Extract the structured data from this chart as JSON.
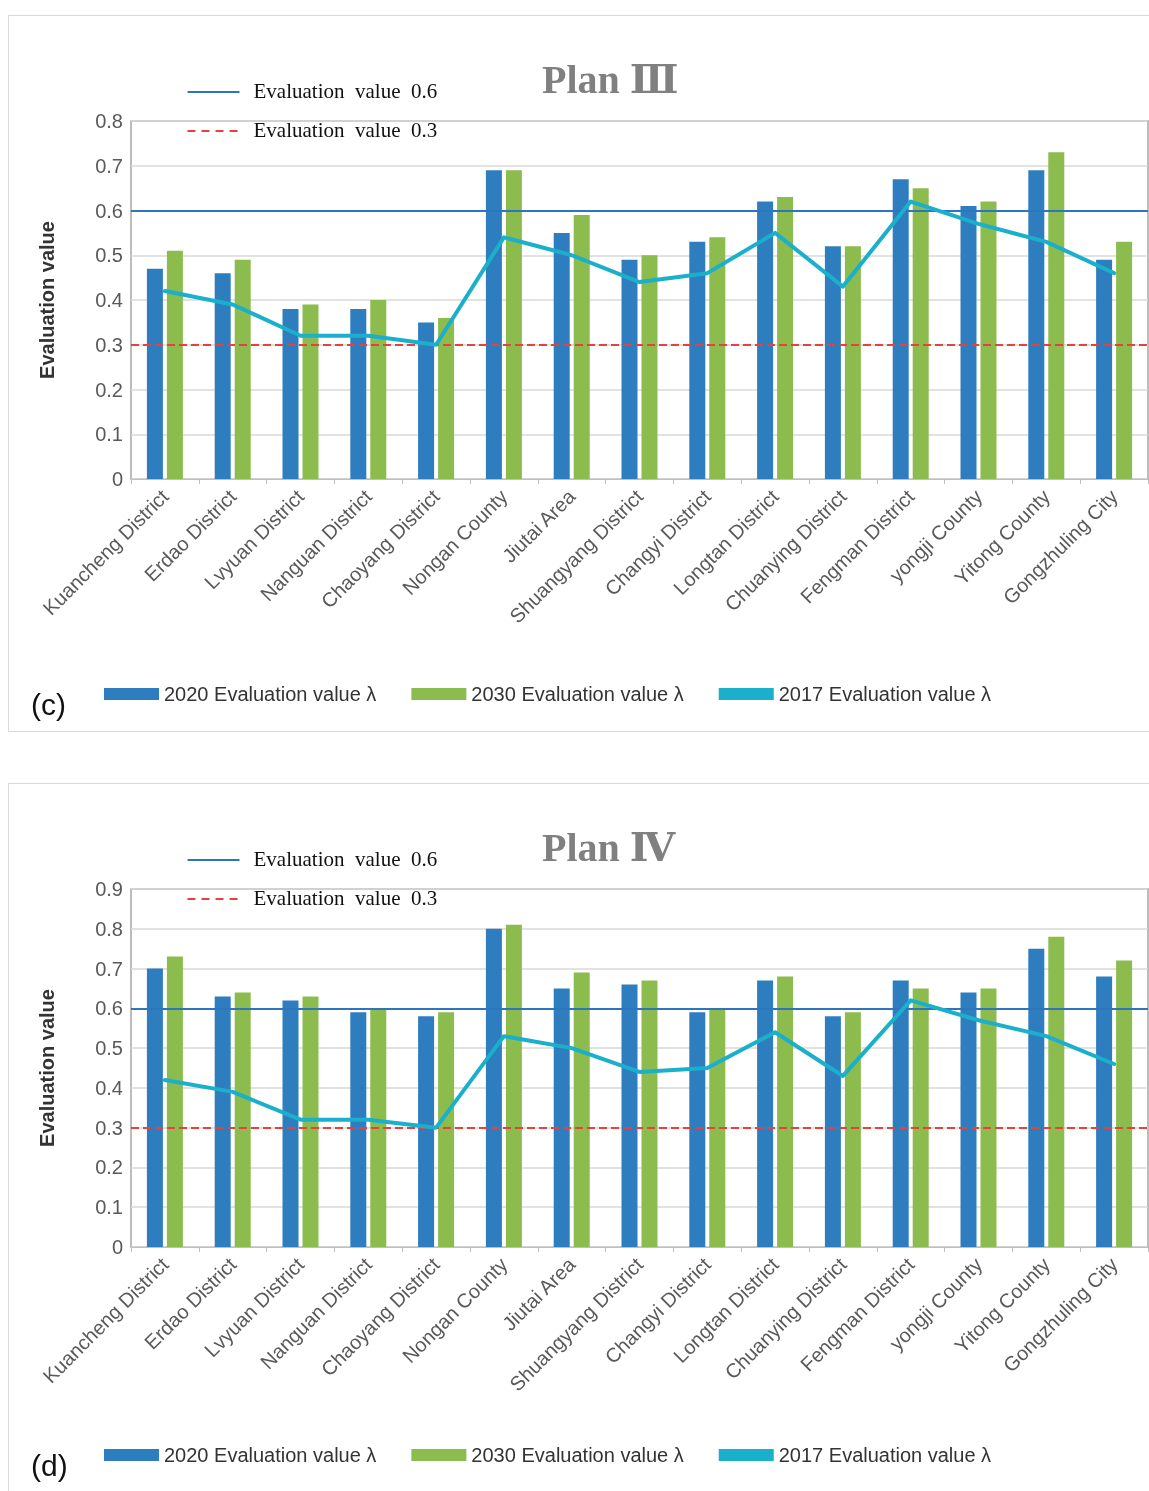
{
  "chart_data": [
    {
      "type": "bar",
      "title": "Plan Ⅲ",
      "ylabel": "Evaluation value",
      "annotations": [
        "(c)"
      ],
      "categories": [
        "Kuancheng District",
        "Erdao District",
        "Lvyuan District",
        "Nanguan District",
        "Chaoyang District",
        "Nongan County",
        "Jiutai Area",
        "Shuangyang District",
        "Changyi District",
        "Longtan District",
        "Chuanying District",
        "Fengman District",
        "yongji County",
        "Yitong County",
        "Gongzhuling City"
      ],
      "series": [
        {
          "name": "2020 Evaluation value λ",
          "color": "#2e7ebf",
          "values": [
            0.47,
            0.46,
            0.38,
            0.38,
            0.35,
            0.69,
            0.55,
            0.49,
            0.53,
            0.62,
            0.52,
            0.67,
            0.61,
            0.69,
            0.49
          ]
        },
        {
          "name": "2030 Evaluation value λ",
          "color": "#8cbb4e",
          "values": [
            0.51,
            0.49,
            0.39,
            0.4,
            0.36,
            0.69,
            0.59,
            0.5,
            0.54,
            0.63,
            0.52,
            0.65,
            0.62,
            0.73,
            0.53
          ]
        },
        {
          "name": "2017 Evaluation value λ",
          "type": "line",
          "color": "#1ab0cb",
          "values": [
            0.42,
            0.39,
            0.32,
            0.32,
            0.3,
            0.54,
            0.5,
            0.44,
            0.46,
            0.55,
            0.43,
            0.62,
            0.57,
            0.53,
            0.46
          ]
        }
      ],
      "ylim": [
        0,
        0.8
      ],
      "yticks": [
        0,
        0.1,
        0.2,
        0.3,
        0.4,
        0.5,
        0.6,
        0.7,
        0.8
      ],
      "grid": "y",
      "legend": "bottom",
      "marker": "none",
      "ref_lines": [
        {
          "axis": "y",
          "value": 0.6,
          "label": "Evaluation  value  0.6",
          "color": "#2e75c0",
          "line_style": "solid"
        },
        {
          "axis": "y",
          "value": 0.3,
          "label": "Evaluation  value  0.3",
          "color": "#e8403a",
          "line_style": "dashed"
        }
      ]
    },
    {
      "type": "bar",
      "title": "Plan Ⅳ",
      "ylabel": "Evaluation value",
      "annotations": [
        "(d)"
      ],
      "categories": [
        "Kuancheng District",
        "Erdao District",
        "Lvyuan District",
        "Nanguan District",
        "Chaoyang District",
        "Nongan County",
        "Jiutai Area",
        "Shuangyang District",
        "Changyi District",
        "Longtan District",
        "Chuanying District",
        "Fengman District",
        "yongji County",
        "Yitong County",
        "Gongzhuling City"
      ],
      "series": [
        {
          "name": "2020 Evaluation value λ",
          "color": "#2e7ebf",
          "values": [
            0.7,
            0.63,
            0.62,
            0.59,
            0.58,
            0.8,
            0.65,
            0.66,
            0.59,
            0.67,
            0.58,
            0.67,
            0.64,
            0.75,
            0.68
          ]
        },
        {
          "name": "2030 Evaluation value λ",
          "color": "#8cbb4e",
          "values": [
            0.73,
            0.64,
            0.63,
            0.6,
            0.59,
            0.81,
            0.69,
            0.67,
            0.6,
            0.68,
            0.59,
            0.65,
            0.65,
            0.78,
            0.72
          ]
        },
        {
          "name": "2017 Evaluation value λ",
          "type": "line",
          "color": "#1ab0cb",
          "values": [
            0.42,
            0.39,
            0.32,
            0.32,
            0.3,
            0.53,
            0.5,
            0.44,
            0.45,
            0.54,
            0.43,
            0.62,
            0.57,
            0.53,
            0.46
          ]
        }
      ],
      "ylim": [
        0,
        0.9
      ],
      "yticks": [
        0,
        0.1,
        0.2,
        0.3,
        0.4,
        0.5,
        0.6,
        0.7,
        0.8,
        0.9
      ],
      "grid": "y",
      "legend": "bottom",
      "marker": "none",
      "ref_lines": [
        {
          "axis": "y",
          "value": 0.6,
          "label": "Evaluation  value  0.6",
          "color": "#2e75c0",
          "line_style": "solid"
        },
        {
          "axis": "y",
          "value": 0.3,
          "label": "Evaluation  value  0.3",
          "color": "#e8403a",
          "line_style": "dashed"
        }
      ]
    }
  ]
}
